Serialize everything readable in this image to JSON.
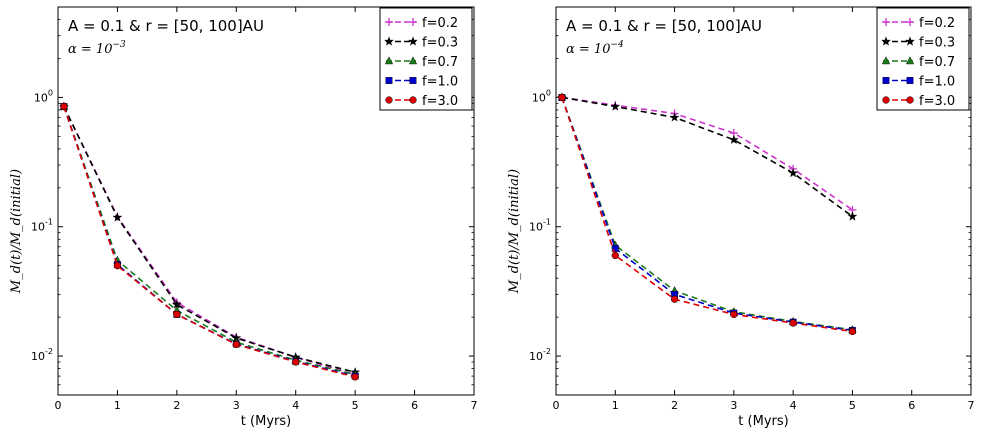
{
  "chart_data": [
    {
      "type": "line",
      "xlabel": "t (Myrs)",
      "ylabel": "M_d(t)/M_d(initial)",
      "yscale": "log",
      "xlim": [
        0,
        7
      ],
      "ylim": [
        0.005,
        5
      ],
      "x_ticks": [
        "0",
        "1",
        "2",
        "3",
        "4",
        "5",
        "6",
        "7"
      ],
      "y_ticks": [
        {
          "base": "10",
          "exp": "0",
          "value": 1
        },
        {
          "base": "10",
          "exp": "-1",
          "value": 0.1
        },
        {
          "base": "10",
          "exp": "-2",
          "value": 0.01
        }
      ],
      "annotation": "A = 0.1  &  r = [50, 100]AU",
      "alpha_label": "α = 10",
      "alpha_exp": "−3",
      "legend_position": "top-right",
      "series": [
        {
          "name": "f=0.2",
          "color": "#cc33cc",
          "marker": "plus",
          "x": [
            0.1,
            1,
            2,
            3,
            4,
            5
          ],
          "y": [
            0.85,
            0.12,
            0.026,
            0.014,
            0.0098,
            0.0072
          ]
        },
        {
          "name": "f=0.3",
          "color": "#000000",
          "marker": "star",
          "x": [
            0.1,
            1,
            2,
            3,
            4,
            5
          ],
          "y": [
            0.85,
            0.118,
            0.025,
            0.0138,
            0.0098,
            0.0075
          ]
        },
        {
          "name": "f=0.7",
          "color": "#1b7a1b",
          "marker": "triangle",
          "x": [
            0.1,
            1,
            2,
            3,
            4,
            5
          ],
          "y": [
            0.85,
            0.055,
            0.0225,
            0.0128,
            0.0093,
            0.0072
          ]
        },
        {
          "name": "f=1.0",
          "color": "#0000cc",
          "marker": "square",
          "x": [
            0.1,
            1,
            2,
            3,
            4,
            5
          ],
          "y": [
            0.85,
            0.051,
            0.021,
            0.0124,
            0.0091,
            0.007
          ]
        },
        {
          "name": "f=3.0",
          "color": "#dd0000",
          "marker": "circle",
          "x": [
            0.1,
            1,
            2,
            3,
            4,
            5
          ],
          "y": [
            0.85,
            0.05,
            0.021,
            0.0123,
            0.009,
            0.0069
          ]
        }
      ]
    },
    {
      "type": "line",
      "xlabel": "t (Myrs)",
      "ylabel": "M_d(t)/M_d(initial)",
      "yscale": "log",
      "xlim": [
        0,
        7
      ],
      "ylim": [
        0.005,
        5
      ],
      "x_ticks": [
        "0",
        "1",
        "2",
        "3",
        "4",
        "5",
        "6",
        "7"
      ],
      "y_ticks": [
        {
          "base": "10",
          "exp": "0",
          "value": 1
        },
        {
          "base": "10",
          "exp": "-1",
          "value": 0.1
        },
        {
          "base": "10",
          "exp": "-2",
          "value": 0.01
        }
      ],
      "annotation": "A = 0.1  &  r = [50, 100]AU",
      "alpha_label": "α = 10",
      "alpha_exp": "−4",
      "legend_position": "top-right",
      "series": [
        {
          "name": "f=0.2",
          "color": "#cc33cc",
          "marker": "plus",
          "x": [
            0.1,
            1,
            2,
            3,
            4,
            5
          ],
          "y": [
            1.0,
            0.87,
            0.75,
            0.53,
            0.28,
            0.135
          ]
        },
        {
          "name": "f=0.3",
          "color": "#000000",
          "marker": "star",
          "x": [
            0.1,
            1,
            2,
            3,
            4,
            5
          ],
          "y": [
            1.0,
            0.85,
            0.7,
            0.47,
            0.26,
            0.12
          ]
        },
        {
          "name": "f=0.7",
          "color": "#1b7a1b",
          "marker": "triangle",
          "x": [
            0.1,
            1,
            2,
            3,
            4,
            5
          ],
          "y": [
            1.0,
            0.072,
            0.032,
            0.022,
            0.0185,
            0.016
          ]
        },
        {
          "name": "f=1.0",
          "color": "#0000cc",
          "marker": "square",
          "x": [
            0.1,
            1,
            2,
            3,
            4,
            5
          ],
          "y": [
            1.0,
            0.068,
            0.03,
            0.0215,
            0.0183,
            0.0158
          ]
        },
        {
          "name": "f=3.0",
          "color": "#dd0000",
          "marker": "circle",
          "x": [
            0.1,
            1,
            2,
            3,
            4,
            5
          ],
          "y": [
            1.0,
            0.06,
            0.0275,
            0.021,
            0.018,
            0.0155
          ]
        }
      ]
    }
  ]
}
